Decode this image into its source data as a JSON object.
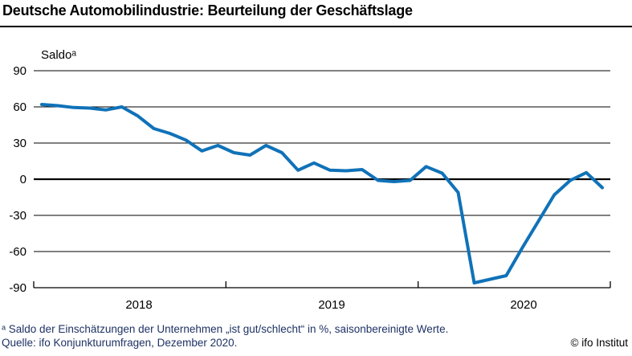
{
  "header": {
    "title": "Deutsche Automobilindustrie: Beurteilung der Geschäftslage"
  },
  "axis_label": "Saldoᵃ",
  "footnotes": {
    "line1": "ᵃ Saldo der Einschätzungen der Unternehmen „ist gut/schlecht“ in %, saisonbereinigte Werte.",
    "line2": "Quelle: ifo Konjunkturumfragen, Dezember 2020.",
    "copyright": "© ifo Institut"
  },
  "colors": {
    "line": "#1072b8",
    "grid": "#000000",
    "footnote": "#1e3264",
    "text": "#000000"
  },
  "chart_data": {
    "type": "line",
    "title": "Deutsche Automobilindustrie: Beurteilung der Geschäftslage",
    "ylabel": "Saldo",
    "ylim": [
      -90,
      90
    ],
    "yticks": [
      90,
      60,
      30,
      0,
      -30,
      -60,
      -90
    ],
    "grid": true,
    "legend": false,
    "x_year_labels": [
      "2018",
      "2019",
      "2020"
    ],
    "x": [
      "2018-01",
      "2018-02",
      "2018-03",
      "2018-04",
      "2018-05",
      "2018-06",
      "2018-07",
      "2018-08",
      "2018-09",
      "2018-10",
      "2018-11",
      "2018-12",
      "2019-01",
      "2019-02",
      "2019-03",
      "2019-04",
      "2019-05",
      "2019-06",
      "2019-07",
      "2019-08",
      "2019-09",
      "2019-10",
      "2019-11",
      "2019-12",
      "2020-01",
      "2020-02",
      "2020-03",
      "2020-04",
      "2020-05",
      "2020-06",
      "2020-07",
      "2020-08",
      "2020-09",
      "2020-10",
      "2020-11",
      "2020-12"
    ],
    "series": [
      {
        "name": "Beurteilung der Geschäftslage (Saldo)",
        "values": [
          62,
          61,
          59.5,
          59,
          57.5,
          60,
          52.5,
          42,
          38,
          32.5,
          23.5,
          28,
          22,
          20,
          28,
          22,
          7.5,
          13.5,
          7.5,
          7,
          8,
          -1,
          -2,
          -1,
          10.5,
          5,
          -11,
          -86,
          -83,
          -80,
          -57,
          -35,
          -13,
          -1,
          5.5,
          -7
        ]
      }
    ]
  }
}
